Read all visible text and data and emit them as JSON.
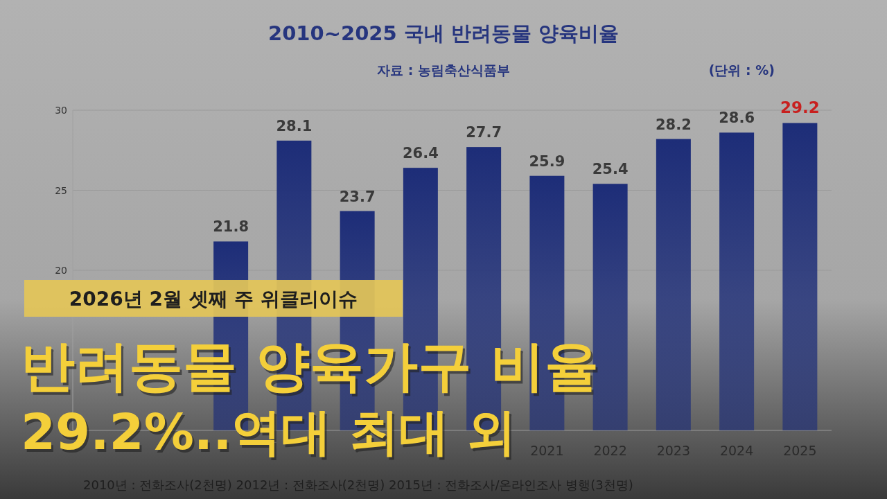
{
  "chart_data": {
    "type": "bar",
    "title": "2010~2025 국내 반려동물 양육비율",
    "subtitle": "자료 : 농림축산식품부",
    "ylabel": "(단위 : %)",
    "categories": [
      null,
      null,
      null,
      null,
      null,
      null,
      null,
      "2021",
      "2022",
      "2023",
      "2024",
      "2025"
    ],
    "values": [
      null,
      null,
      21.8,
      28.1,
      23.7,
      26.4,
      27.7,
      25.9,
      25.4,
      28.2,
      28.6,
      29.2
    ],
    "value_labels": [
      null,
      null,
      "21.8",
      "28.1",
      "23.7",
      "26.4",
      "27.7",
      "25.9",
      "25.4",
      "28.2",
      "28.6",
      null
    ],
    "color": "#1d2d78",
    "ylim": [
      10,
      30
    ],
    "yticks": [
      20,
      25,
      30
    ],
    "grid": "y",
    "annotations": [
      {
        "text": "29.2",
        "x": "2025",
        "y": 29.2
      },
      "2010년 : 전화조사(2천명)  2012년 : 전화조사(2천명)  2015년 : 전화조사/온라인조사 병행(3천명)",
      "2026년 2월 셋째 주 위클리이슈",
      "반려동물 양육가구 비율",
      "29.2%..역대 최대 외"
    ]
  }
}
